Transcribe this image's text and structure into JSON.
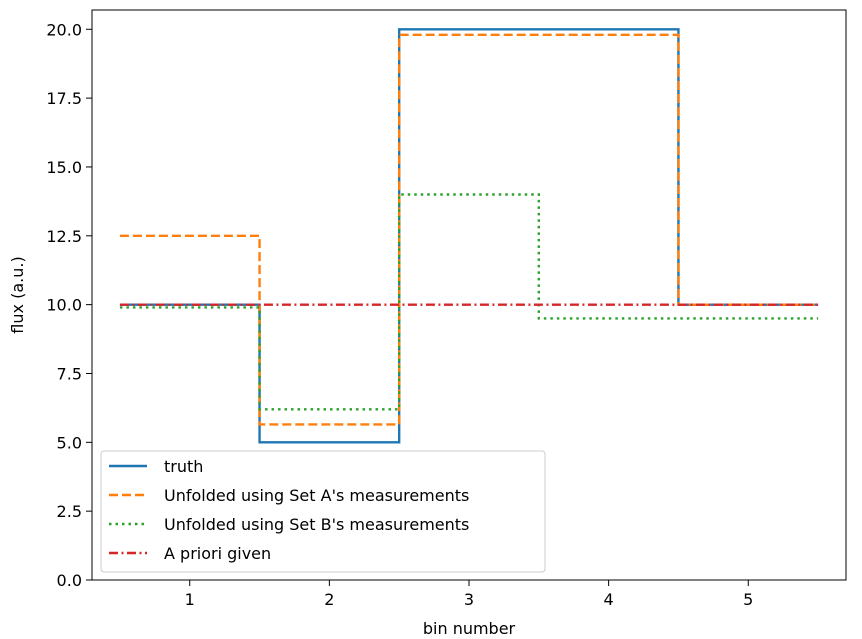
{
  "chart_data": {
    "type": "line",
    "drawstyle": "steps",
    "xlabel": "bin number",
    "ylabel": "flux (a.u.)",
    "xlim": [
      0.3,
      5.7
    ],
    "ylim": [
      0,
      20.7
    ],
    "xticks": [
      1,
      2,
      3,
      4,
      5
    ],
    "xtick_labels": [
      "1",
      "2",
      "3",
      "4",
      "5"
    ],
    "yticks": [
      0,
      2.5,
      5,
      7.5,
      10,
      12.5,
      15,
      17.5,
      20
    ],
    "ytick_labels": [
      "0.0",
      "2.5",
      "5.0",
      "7.5",
      "10.0",
      "12.5",
      "15.0",
      "17.5",
      "20.0"
    ],
    "bins": [
      1,
      2,
      3,
      4,
      5
    ],
    "grid": false,
    "legend_position": "lower-left",
    "series": [
      {
        "name": "truth",
        "values": [
          10.0,
          5.0,
          20.0,
          20.0,
          10.0
        ],
        "color": "#1f77b4",
        "linestyle": "solid"
      },
      {
        "name": "Unfolded using Set A's measurements",
        "values": [
          12.5,
          5.65,
          19.8,
          19.8,
          10.0
        ],
        "color": "#ff7f0e",
        "linestyle": "dashed"
      },
      {
        "name": "Unfolded using Set B's measurements",
        "values": [
          9.9,
          6.2,
          14.0,
          9.5,
          9.5
        ],
        "color": "#2ca02c",
        "linestyle": "dotted"
      },
      {
        "name": "A priori given",
        "values": [
          10.0,
          10.0,
          10.0,
          10.0,
          10.0
        ],
        "color": "#d62728",
        "linestyle": "dashdot"
      }
    ]
  }
}
